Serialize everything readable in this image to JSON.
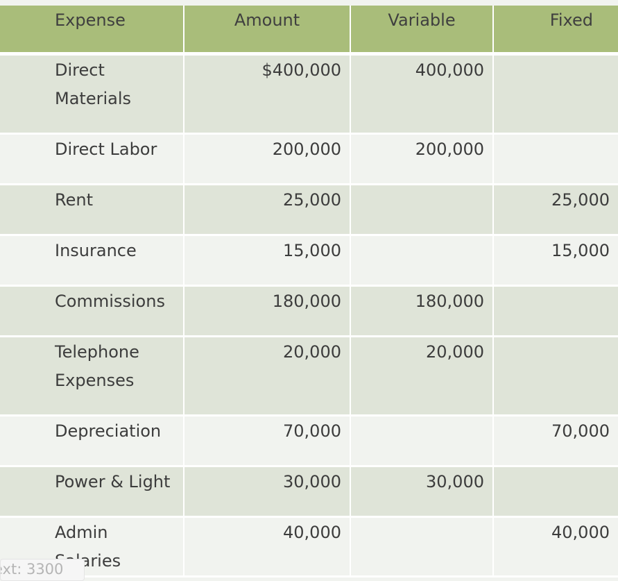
{
  "table": {
    "headers": {
      "expense": "Expense",
      "amount": "Amount",
      "variable": "Variable",
      "fixed": "Fixed"
    },
    "rows": [
      {
        "expense": "Direct Materials",
        "amount": "$400,000",
        "variable": "400,000",
        "fixed": ""
      },
      {
        "expense": "Direct Labor",
        "amount": "200,000",
        "variable": "200,000",
        "fixed": ""
      },
      {
        "expense": "Rent",
        "amount": "25,000",
        "variable": "",
        "fixed": "25,000"
      },
      {
        "expense": "Insurance",
        "amount": "15,000",
        "variable": "",
        "fixed": "15,000"
      },
      {
        "expense": "Commissions",
        "amount": "180,000",
        "variable": "180,000",
        "fixed": ""
      },
      {
        "expense": "Telephone Expenses",
        "amount": "20,000",
        "variable": "20,000",
        "fixed": ""
      },
      {
        "expense": "Depreciation",
        "amount": "70,000",
        "variable": "",
        "fixed": "70,000"
      },
      {
        "expense": "Power & Light",
        "amount": "30,000",
        "variable": "30,000",
        "fixed": ""
      },
      {
        "expense": "Admin Salaries",
        "amount": "40,000",
        "variable": "",
        "fixed": "40,000"
      }
    ]
  },
  "tooltip": {
    "text": "ext: 3300"
  },
  "colors": {
    "header_bg": "#a9bd7a",
    "row_odd_bg": "#dfe4d8",
    "row_even_bg": "#f1f3ef"
  }
}
